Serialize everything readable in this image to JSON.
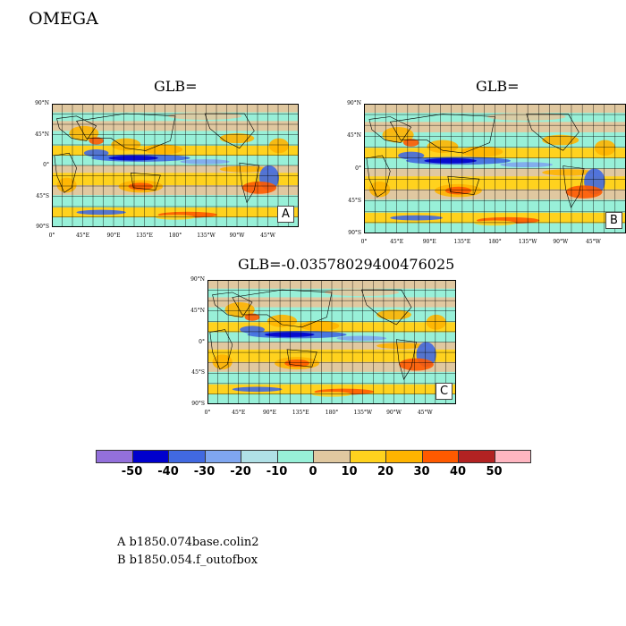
{
  "title": "OMEGA",
  "panels": [
    {
      "id": "A",
      "title": "GLB=",
      "tag": "A"
    },
    {
      "id": "B",
      "title": "GLB=",
      "tag": "B"
    },
    {
      "id": "C",
      "title": "GLB=-0.03578029400476025",
      "tag": "C"
    }
  ],
  "lat_labels": [
    "90°N",
    "45°N",
    "0°",
    "45°S",
    "90°S"
  ],
  "lon_labels": [
    "0°",
    "45°E",
    "90°E",
    "135°E",
    "180°",
    "135°W",
    "90°W",
    "45°W"
  ],
  "colorbar": {
    "colors": [
      "#9370db",
      "#0000cd",
      "#4169e1",
      "#7fa6f0",
      "#b0e0e6",
      "#98f0d8",
      "#e0c8a0",
      "#ffd21e",
      "#ffb400",
      "#ff5a00",
      "#b22222",
      "#ffb6c1"
    ],
    "labels": [
      "-50",
      "-40",
      "-30",
      "-20",
      "-10",
      "0",
      "10",
      "20",
      "30",
      "40",
      "50"
    ]
  },
  "legend": [
    "A  b1850.074base.colin2",
    "B  b1850.054.f_outofbox"
  ]
}
